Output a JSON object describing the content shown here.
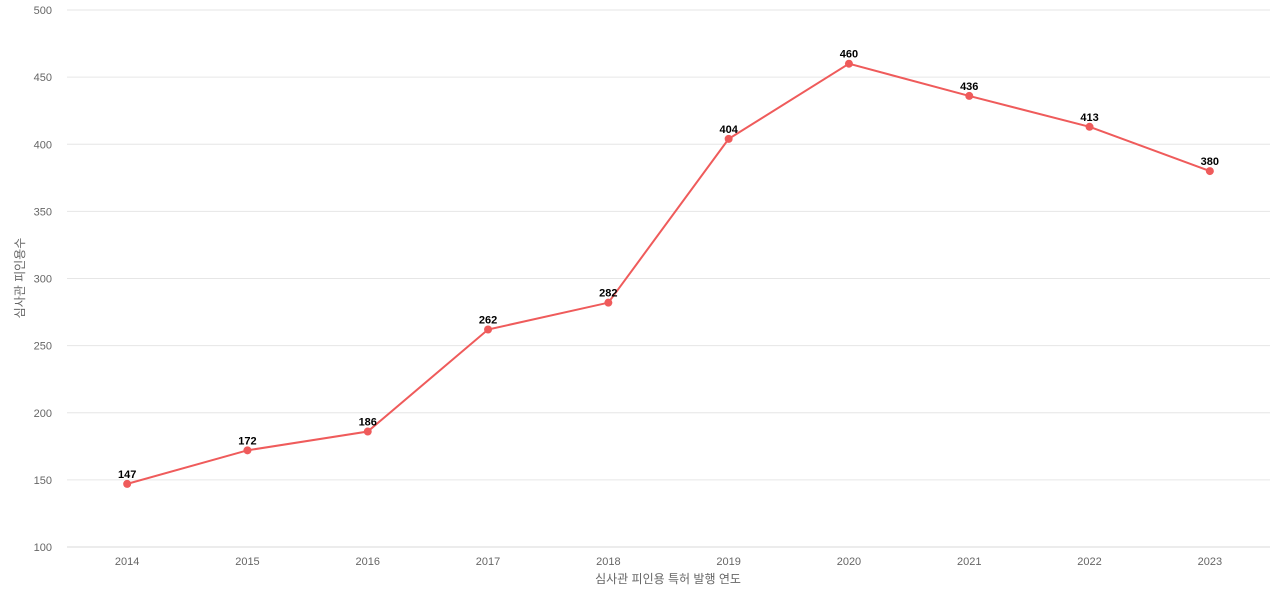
{
  "chart_data": {
    "type": "line",
    "title": "",
    "xlabel": "심사관 피인용 특허 발행 연도",
    "ylabel": "심사관 피인용수",
    "categories": [
      "2014",
      "2015",
      "2016",
      "2017",
      "2018",
      "2019",
      "2020",
      "2021",
      "2022",
      "2023"
    ],
    "series": [
      {
        "values": [
          147,
          172,
          186,
          262,
          282,
          404,
          460,
          436,
          413,
          380
        ],
        "color": "#ef5b5b"
      }
    ],
    "ylim": [
      100,
      500
    ],
    "yticks": [
      100,
      150,
      200,
      250,
      300,
      350,
      400,
      450,
      500
    ],
    "grid": true,
    "data_labels": true,
    "legend": "none"
  }
}
